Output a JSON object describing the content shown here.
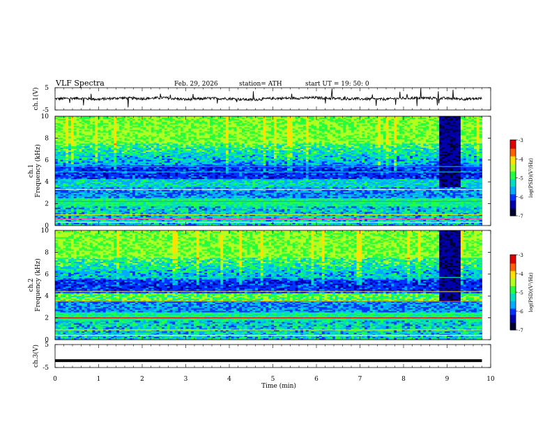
{
  "header": {
    "title": "VLF  Spectra",
    "date": "Feb. 29, 2026",
    "station": "station= ATH",
    "start": "start  UT  =    19: 50: 0"
  },
  "chart_data": [
    {
      "type": "line",
      "id": "ch1-voltage",
      "ylabel": "ch.1(V)",
      "ylim": [
        -5,
        5
      ],
      "yticks": [
        "5",
        "-5"
      ],
      "xlim": [
        0,
        10
      ],
      "note_values": "noisy trace centered near 0 V with spikes up to about ±4 V, ending at 9.8 min",
      "x": [
        0,
        0.5,
        1,
        1.5,
        2,
        2.5,
        3,
        3.5,
        4,
        4.5,
        5,
        5.5,
        6,
        6.5,
        7,
        7.5,
        8,
        8.5,
        9,
        9.5,
        9.8
      ],
      "values": [
        0,
        0.3,
        -0.2,
        0.4,
        0.1,
        0.5,
        -0.3,
        0.2,
        0.1,
        -0.4,
        0.2,
        0.3,
        0.5,
        0.1,
        0.0,
        -0.2,
        0.3,
        0.4,
        0.2,
        -0.1,
        0.2
      ]
    },
    {
      "type": "heatmap",
      "id": "ch1-spectrogram",
      "ylabel": "ch.1\nFrequency  (kHz)",
      "ylim": [
        0,
        10
      ],
      "yticks": [
        "0",
        "2",
        "4",
        "6",
        "8",
        "10"
      ],
      "xlim": [
        0,
        10
      ],
      "colorbar": {
        "label": "log(PSD)(V²/Hz)",
        "range": [
          -7,
          -3
        ],
        "ticks": [
          "-3",
          "-4",
          "-5",
          "-6",
          "-7"
        ]
      }
    },
    {
      "type": "heatmap",
      "id": "ch2-spectrogram",
      "ylabel": "ch.2\nFrequency  (kHz)",
      "ylim": [
        0,
        10
      ],
      "yticks": [
        "0",
        "2",
        "4",
        "6",
        "8",
        "10"
      ],
      "xlim": [
        0,
        10
      ],
      "colorbar": {
        "label": "log(PSD)(V²/Hz)",
        "range": [
          -7,
          -3
        ],
        "ticks": [
          "-3",
          "-4",
          "-5",
          "-6",
          "-7"
        ]
      }
    },
    {
      "type": "line",
      "id": "ch3-voltage",
      "ylabel": "ch.3(V)",
      "ylim": [
        -5,
        5
      ],
      "yticks": [
        "5",
        "-5"
      ],
      "xlim": [
        0,
        10
      ],
      "x": [
        0,
        9.8
      ],
      "values": [
        -2,
        -2
      ]
    }
  ],
  "xaxis": {
    "label": "Time  (min)",
    "ticks": [
      "0",
      "1",
      "2",
      "3",
      "4",
      "5",
      "6",
      "7",
      "8",
      "9",
      "10"
    ]
  },
  "colors": {
    "trace": "#000000",
    "colormap": [
      "#000033",
      "#0000aa",
      "#0033ff",
      "#00aaff",
      "#00e0c0",
      "#20ff40",
      "#b0ff20",
      "#ffe000",
      "#ff6000",
      "#e00000",
      "#ffffff"
    ]
  }
}
